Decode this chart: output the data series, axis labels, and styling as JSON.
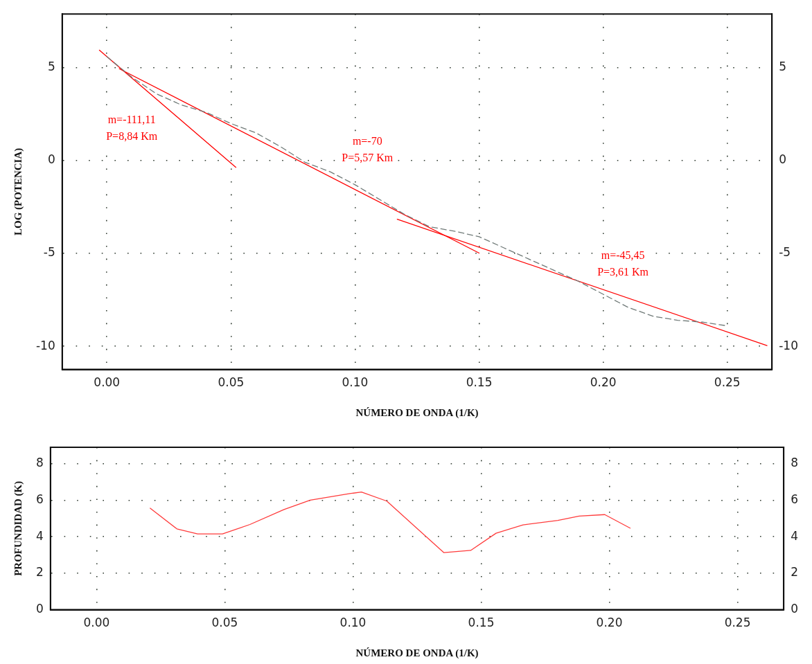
{
  "chart_data": [
    {
      "type": "line",
      "xlabel": "NÚMERO DE ONDA (1/K)",
      "ylabel": "LOG (POTENCIA)",
      "xlim": [
        -0.018,
        0.268
      ],
      "xticks": [
        {
          "value": 0,
          "label": "0.00"
        },
        {
          "value": 0.05,
          "label": "0.05"
        },
        {
          "value": 0.1,
          "label": "0.10"
        },
        {
          "value": 0.15,
          "label": "0.15"
        },
        {
          "value": 0.2,
          "label": "0.20"
        },
        {
          "value": 0.25,
          "label": "0.25"
        }
      ],
      "ylim": [
        -11.25,
        7.9
      ],
      "yticks": [
        -10,
        -5,
        0,
        5
      ],
      "y2lim": [
        -11.25,
        7.9
      ],
      "y2ticks": [
        -10,
        -5,
        0,
        5
      ],
      "grid": true,
      "marker": "none",
      "series": [
        {
          "color": "#707a78",
          "line_style": "dashed",
          "x": [
            0,
            0.01,
            0.02,
            0.03,
            0.04,
            0.05,
            0.06,
            0.07,
            0.08,
            0.09,
            0.1,
            0.11,
            0.12,
            0.13,
            0.14,
            0.15,
            0.16,
            0.17,
            0.18,
            0.19,
            0.2,
            0.21,
            0.22,
            0.23,
            0.24,
            0.25
          ],
          "values": [
            5.6,
            4.5,
            3.6,
            3.0,
            2.6,
            2.0,
            1.5,
            0.75,
            -0.1,
            -0.6,
            -1.3,
            -2.1,
            -2.9,
            -3.56,
            -3.8,
            -4.1,
            -4.7,
            -5.3,
            -5.9,
            -6.5,
            -7.2,
            -7.9,
            -8.38,
            -8.6,
            -8.7,
            -8.9
          ]
        },
        {
          "color": "#ff0000",
          "x": [
            -0.003,
            0.052
          ],
          "values": [
            5.95,
            -0.36
          ]
        },
        {
          "color": "#ff0000",
          "x": [
            0.005,
            0.15
          ],
          "values": [
            4.95,
            -4.98
          ]
        },
        {
          "color": "#ff0000",
          "x": [
            0.117,
            0.266
          ],
          "values": [
            -3.16,
            -9.96
          ]
        }
      ],
      "annotations": [
        "m=-111,11\nP=8,84 Km",
        "m=-70\nP=5,57 Km",
        "m=-45,45\nP=3,61 Km"
      ]
    },
    {
      "type": "line",
      "xlabel": "NÚMERO DE ONDA (1/K)",
      "ylabel": "PROFUNDIDAD (K)",
      "xlim": [
        -0.018,
        0.268
      ],
      "xticks": [
        {
          "value": 0,
          "label": "0.00"
        },
        {
          "value": 0.05,
          "label": "0.05"
        },
        {
          "value": 0.1,
          "label": "0.10"
        },
        {
          "value": 0.15,
          "label": "0.15"
        },
        {
          "value": 0.2,
          "label": "0.20"
        },
        {
          "value": 0.25,
          "label": "0.25"
        }
      ],
      "ylim": [
        0,
        8.9
      ],
      "yticks": [
        0,
        2,
        4,
        6,
        8
      ],
      "y2lim": [
        0,
        8.9
      ],
      "y2ticks": [
        0,
        2,
        4,
        6,
        8
      ],
      "grid": true,
      "marker": "none",
      "series": [
        {
          "color": "#ff3b3b",
          "x": [
            0.0209,
            0.0313,
            0.0394,
            0.0491,
            0.0598,
            0.0731,
            0.0833,
            0.0987,
            0.1033,
            0.1132,
            0.1354,
            0.1459,
            0.1558,
            0.1663,
            0.1799,
            0.1882,
            0.1982,
            0.2081
          ],
          "values": [
            5.56,
            4.43,
            4.15,
            4.15,
            4.67,
            5.49,
            6.0,
            6.36,
            6.45,
            5.95,
            3.13,
            3.25,
            4.19,
            4.65,
            4.89,
            5.13,
            5.21,
            4.47
          ]
        }
      ]
    }
  ]
}
